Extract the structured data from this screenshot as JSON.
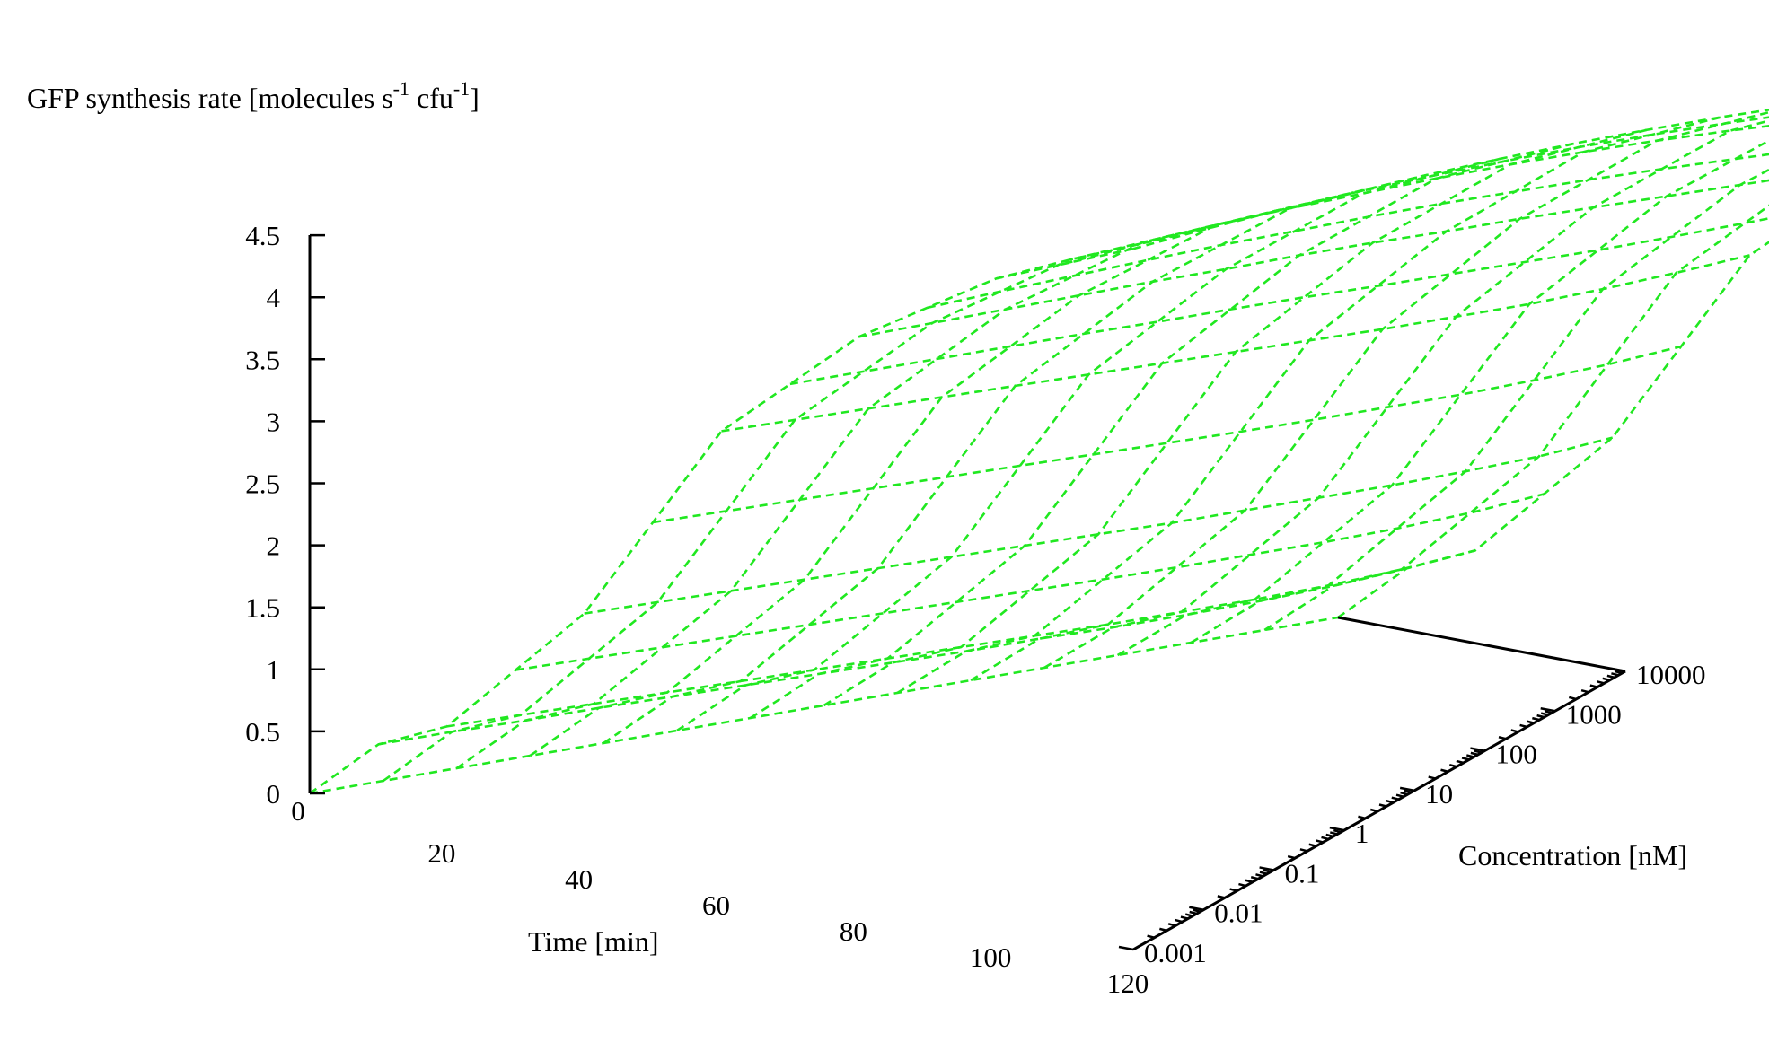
{
  "chart_data": {
    "type": "surface3d",
    "title": "",
    "zlabel": "GFP synthesis rate [molecules s",
    "zlabel_sup1": "-1",
    "zlabel_mid": " cfu",
    "zlabel_sup2": "-1",
    "zlabel_end": "]",
    "xlabel": "Time [min]",
    "ylabel": "Concentration [nM]",
    "z_ticks": [
      "0",
      "0.5",
      "1",
      "1.5",
      "2",
      "2.5",
      "3",
      "3.5",
      "4",
      "4.5"
    ],
    "z_tick_values": [
      0,
      0.5,
      1,
      1.5,
      2,
      2.5,
      3,
      3.5,
      4,
      4.5
    ],
    "zlim": [
      0,
      4.5
    ],
    "x_ticks": [
      "0",
      "20",
      "40",
      "60",
      "80",
      "100",
      "120"
    ],
    "x_tick_values": [
      0,
      20,
      40,
      60,
      80,
      100,
      120
    ],
    "xlim": [
      0,
      120
    ],
    "y_ticks": [
      "0.001",
      "0.01",
      "0.1",
      "1",
      "10",
      "100",
      "1000",
      "10000"
    ],
    "y_tick_log10": [
      -3,
      -2,
      -1,
      0,
      1,
      2,
      3,
      4
    ],
    "ylim_log10": [
      -3,
      4
    ],
    "y_scale": "log",
    "grid": false,
    "line_color": "#20e820",
    "line_style": "dashed",
    "time_min": [
      0,
      10,
      20,
      30,
      40,
      50,
      60,
      70,
      80,
      90,
      100,
      110,
      120
    ],
    "conc_log10_nM": [
      -3,
      -2.5,
      -2,
      -1.5,
      -1,
      -0.5,
      0,
      0.5,
      1,
      1.5,
      2,
      2.5,
      3,
      3.5,
      4
    ],
    "rate_by_time": [
      [
        0.0,
        0.0,
        0.0,
        0.0,
        0.0,
        0.0,
        0.0,
        0.0,
        0.0,
        0.0,
        0.0,
        0.0,
        0.0,
        0.0,
        0.0
      ],
      [
        0.5,
        0.5,
        0.49,
        0.49,
        0.48,
        0.47,
        0.46,
        0.45,
        0.44,
        0.44,
        0.43,
        0.43,
        0.44,
        0.46,
        0.5
      ],
      [
        0.75,
        0.74,
        0.73,
        0.72,
        0.71,
        0.7,
        0.69,
        0.68,
        0.67,
        0.66,
        0.66,
        0.66,
        0.67,
        0.7,
        0.75
      ],
      [
        1.87,
        1.86,
        1.85,
        1.84,
        1.83,
        1.82,
        1.81,
        1.8,
        1.79,
        1.79,
        1.79,
        1.79,
        1.8,
        1.82,
        1.87
      ],
      [
        3.55,
        3.54,
        3.53,
        3.52,
        3.51,
        3.5,
        3.49,
        3.48,
        3.47,
        3.46,
        3.46,
        3.46,
        3.48,
        3.51,
        3.55
      ],
      [
        4.52,
        4.53,
        4.54,
        4.55,
        4.56,
        4.56,
        4.57,
        4.57,
        4.56,
        4.56,
        4.55,
        4.54,
        4.53,
        4.52,
        4.51
      ],
      [
        5.2,
        5.25,
        5.29,
        5.33,
        5.36,
        5.38,
        5.4,
        5.41,
        5.41,
        5.4,
        5.38,
        5.35,
        5.32,
        5.28,
        5.23
      ],
      [
        5.65,
        5.71,
        5.76,
        5.8,
        5.84,
        5.87,
        5.89,
        5.9,
        5.9,
        5.89,
        5.87,
        5.84,
        5.8,
        5.75,
        5.7
      ]
    ],
    "rate_time_index": [
      0,
      10,
      20,
      40,
      60,
      80,
      100,
      120
    ]
  }
}
